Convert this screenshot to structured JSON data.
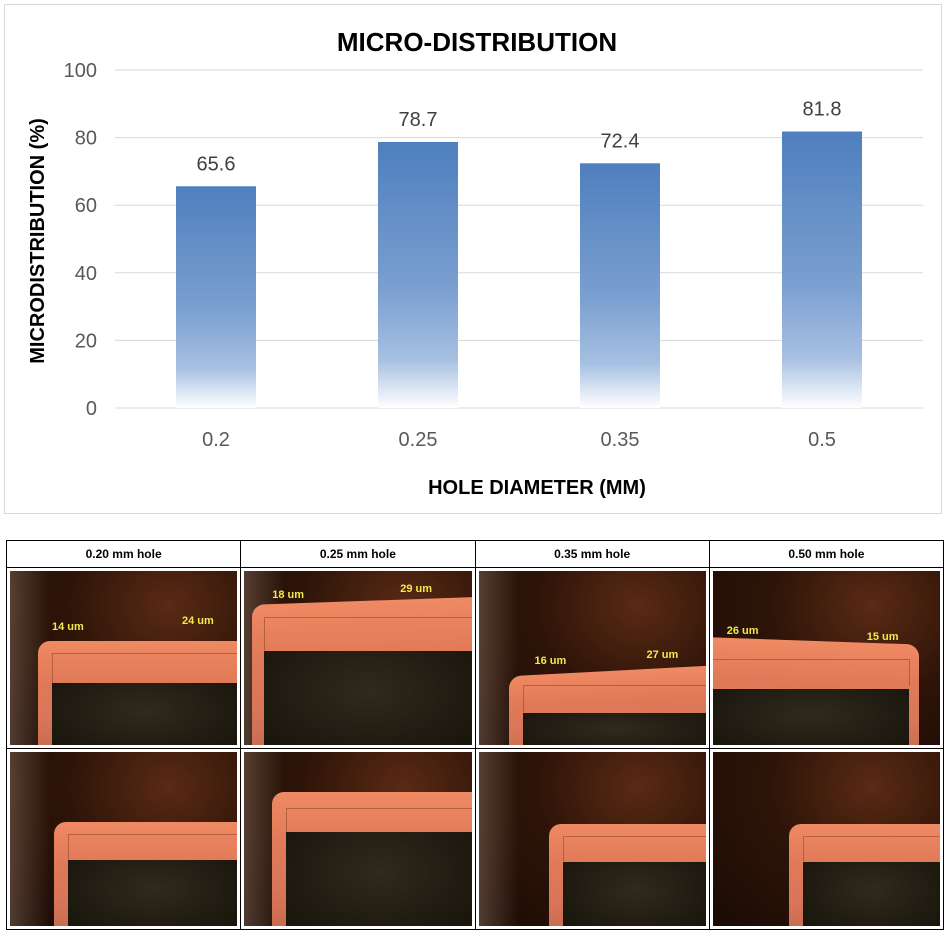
{
  "chart_data": {
    "type": "bar",
    "title": "MICRO-DISTRIBUTION",
    "xlabel": "HOLE DIAMETER (MM)",
    "ylabel": "MICRODISTRIBUTION (%)",
    "categories": [
      "0.2",
      "0.25",
      "0.35",
      "0.5"
    ],
    "values": [
      65.6,
      78.7,
      72.4,
      81.8
    ],
    "data_labels": [
      "65.6",
      "78.7",
      "72.4",
      "81.8"
    ],
    "ylim": [
      0,
      100
    ],
    "yticks": [
      0,
      20,
      40,
      60,
      80,
      100
    ],
    "grid": true,
    "legend": "none",
    "bar_color_top": "#4f7fbe",
    "bar_color_bottom": "#ffffff"
  },
  "photo_table": {
    "headers": [
      "0.20 mm hole",
      "0.25 mm hole",
      "0.35 mm hole",
      "0.50 mm hole"
    ],
    "top_row_labels": [
      [
        "14 um",
        "24 um"
      ],
      [
        "18 um",
        "29 um"
      ],
      [
        "16 um",
        "27 um"
      ],
      [
        "26 um",
        "15 um"
      ]
    ],
    "colors": {
      "copper": "#e07a58",
      "label": "#f5e84a",
      "background": "#1a0b05"
    }
  }
}
